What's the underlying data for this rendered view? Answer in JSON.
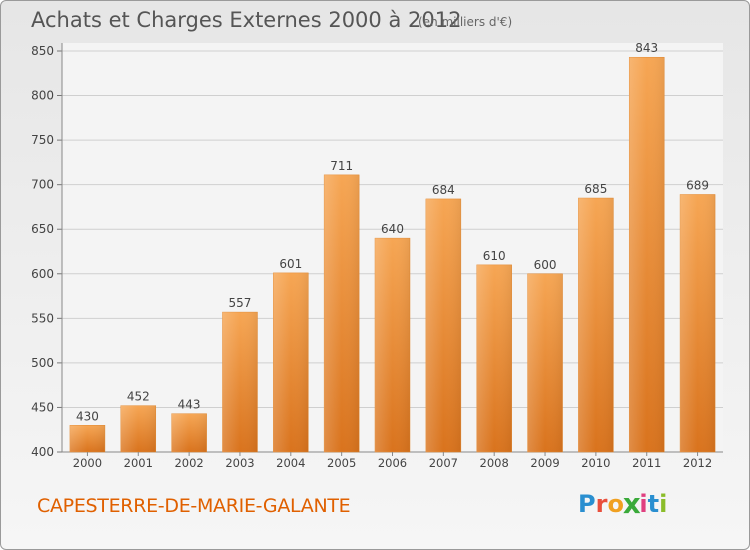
{
  "header": {
    "title": "Achats et Charges Externes 2000 à 2012",
    "subtitle": "(en milliers d'€)"
  },
  "footer": {
    "commune": "CAPESTERRE-DE-MARIE-GALANTE",
    "logo_text": "Proxiti",
    "logo_letters": [
      {
        "ch": "P",
        "color": "#2a8fd0"
      },
      {
        "ch": "r",
        "color": "#e94f3c"
      },
      {
        "ch": "o",
        "color": "#f0a020"
      },
      {
        "ch": "x",
        "color": "#3aaa3a"
      },
      {
        "ch": "i",
        "color": "#e04080"
      },
      {
        "ch": "t",
        "color": "#2a8fd0"
      },
      {
        "ch": "i",
        "color": "#8bbd2a"
      }
    ]
  },
  "chart_data": {
    "type": "bar",
    "categories": [
      "2000",
      "2001",
      "2002",
      "2003",
      "2004",
      "2005",
      "2006",
      "2007",
      "2008",
      "2009",
      "2010",
      "2011",
      "2012"
    ],
    "values": [
      430,
      452,
      443,
      557,
      601,
      711,
      640,
      684,
      610,
      600,
      685,
      843,
      689
    ],
    "ylim": [
      400,
      850
    ],
    "yticks": [
      400,
      450,
      500,
      550,
      600,
      650,
      700,
      750,
      800,
      850
    ],
    "grid": true,
    "bar_color_top": "#f6a654",
    "bar_color_bottom": "#d9731d",
    "show_value_labels": true
  }
}
